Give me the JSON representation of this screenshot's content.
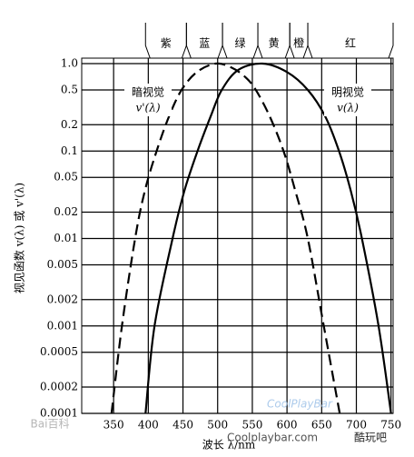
{
  "chart_data": {
    "type": "line",
    "x_label": "波长 λ/nm",
    "y_label": "视见函数 v(λ) 或 v'(λ)",
    "xlim": [
      304,
      753
    ],
    "xticks": [
      350,
      400,
      450,
      500,
      550,
      600,
      650,
      700,
      750
    ],
    "ylim": [
      0.0001,
      1
    ],
    "yscale": "log",
    "yticks": [
      {
        "value": 1,
        "label": "1.0"
      },
      0.5,
      0.2,
      0.1,
      0.05,
      0.02,
      0.01,
      0.005,
      0.002,
      0.001,
      0.0005,
      0.0002,
      0.0001
    ],
    "grid": true,
    "bands": [
      {
        "name": "紫",
        "range": [
          396,
          455
        ]
      },
      {
        "name": "蓝",
        "range": [
          455,
          507
        ]
      },
      {
        "name": "绿",
        "range": [
          507,
          558
        ]
      },
      {
        "name": "黄",
        "range": [
          558,
          604
        ]
      },
      {
        "name": "橙",
        "range": [
          604,
          630
        ]
      },
      {
        "name": "红",
        "range": [
          630,
          753
        ]
      }
    ],
    "series": [
      {
        "name": "暗视觉",
        "label": "v'(λ)",
        "color": "#000000",
        "dash": true,
        "x": [
          347,
          362,
          381,
          395,
          412,
          430,
          448,
          470,
          497,
          520,
          540,
          555,
          575,
          595,
          612,
          630,
          653,
          676
        ],
        "values": [
          0.0001,
          0.001,
          0.01,
          0.035,
          0.1,
          0.25,
          0.5,
          0.8,
          1.0,
          0.9,
          0.7,
          0.5,
          0.25,
          0.1,
          0.035,
          0.01,
          0.001,
          0.0001
        ]
      },
      {
        "name": "明视觉",
        "label": "v(λ)",
        "color": "#000000",
        "dash": false,
        "x": [
          396,
          409,
          435,
          452,
          471,
          490,
          506,
          530,
          565,
          600,
          630,
          655,
          675,
          692,
          708,
          732,
          750
        ],
        "values": [
          0.0001,
          0.001,
          0.01,
          0.035,
          0.1,
          0.25,
          0.5,
          0.85,
          1.0,
          0.8,
          0.5,
          0.25,
          0.1,
          0.035,
          0.01,
          0.001,
          0.0001
        ]
      }
    ],
    "watermarks": [
      "Bai百科",
      "CoolPlayBar",
      "Coolplaybar.com",
      "酷玩吧"
    ]
  }
}
